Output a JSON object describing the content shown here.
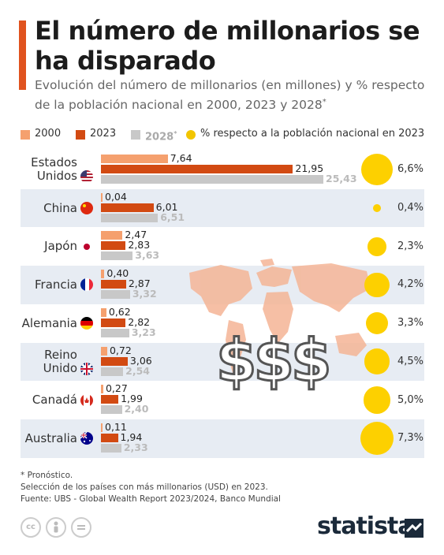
{
  "header": {
    "title": "El número de millonarios se ha disparado",
    "subtitle": "Evolución del número de millonarios (en millones) y % respecto de la población nacional en 2000, 2023 y 2028",
    "subtitle_mark": "*"
  },
  "legend": {
    "l2000": "2000",
    "l2023": "2023",
    "l2028": "2028",
    "l2028_mark": "*",
    "lpct": "% respecto a la población nacional en 2023"
  },
  "colors": {
    "y2000": "#f5a06e",
    "y2023": "#d24a12",
    "y2028": "#c8c8c8",
    "bubble": "#fdd000",
    "accent": "#e0531f"
  },
  "chart_data": {
    "type": "bar",
    "orientation": "horizontal",
    "categories": [
      "Estados Unidos",
      "China",
      "Japón",
      "Francia",
      "Alemania",
      "Reino Unido",
      "Canadá",
      "Australia"
    ],
    "category_lines": [
      [
        "Estados",
        "Unidos"
      ],
      [
        "China"
      ],
      [
        "Japón"
      ],
      [
        "Francia"
      ],
      [
        "Alemania"
      ],
      [
        "Reino",
        "Unido"
      ],
      [
        "Canadá"
      ],
      [
        "Australia"
      ]
    ],
    "flags": [
      "us-flag-icon",
      "china-flag-icon",
      "japan-flag-icon",
      "france-flag-icon",
      "germany-flag-icon",
      "uk-flag-icon",
      "canada-flag-icon",
      "australia-flag-icon"
    ],
    "series": [
      {
        "name": "2000",
        "values": [
          7.64,
          0.04,
          2.47,
          0.4,
          0.62,
          0.72,
          0.27,
          0.11
        ],
        "labels": [
          "7,64",
          "0,04",
          "2,47",
          "0,40",
          "0,62",
          "0,72",
          "0,27",
          "0,11"
        ]
      },
      {
        "name": "2023",
        "values": [
          21.95,
          6.01,
          2.83,
          2.87,
          2.82,
          3.06,
          1.99,
          1.94
        ],
        "labels": [
          "21,95",
          "6,01",
          "2,83",
          "2,87",
          "2,82",
          "3,06",
          "1,99",
          "1,94"
        ]
      },
      {
        "name": "2028",
        "values": [
          25.43,
          6.51,
          3.63,
          3.32,
          3.23,
          2.54,
          2.4,
          2.33
        ],
        "labels": [
          "25,43",
          "6,51",
          "3,63",
          "3,32",
          "3,23",
          "2,54",
          "2,40",
          "2,33"
        ]
      }
    ],
    "pct_population": {
      "name": "% respecto a la población nacional en 2023",
      "values": [
        6.6,
        0.4,
        2.3,
        4.2,
        3.3,
        4.5,
        5.0,
        7.3
      ],
      "labels": [
        "6,6%",
        "0,4%",
        "2,3%",
        "4,2%",
        "3,3%",
        "4,5%",
        "5,0%",
        "7,3%"
      ]
    },
    "xlim": [
      0,
      25.43
    ]
  },
  "decoration": {
    "dollars": "$$$"
  },
  "footer": {
    "note1": "* Pronóstico.",
    "note2": "Selección de los países con más millonarios (USD) en 2023.",
    "source": "Fuente: UBS - Global Wealth Report 2023/2024, Banco Mundial",
    "brand": "statista",
    "license_icons": [
      "cc-icon",
      "person-icon",
      "equals-icon"
    ]
  }
}
